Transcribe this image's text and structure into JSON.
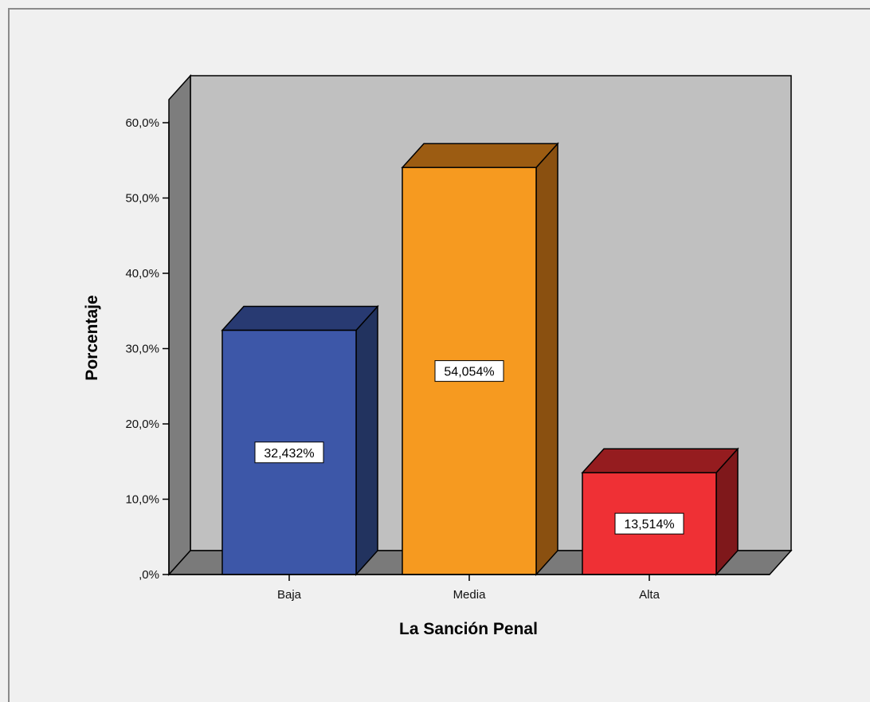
{
  "chart_data": {
    "type": "bar",
    "style": "3d",
    "title": "",
    "xlabel": "La Sanción Penal",
    "ylabel": "Porcentaje",
    "categories": [
      "Baja",
      "Media",
      "Alta"
    ],
    "values": [
      32.432,
      54.054,
      13.514
    ],
    "data_labels": [
      "32,432%",
      "54,054%",
      "13,514%"
    ],
    "ylim": [
      0,
      60
    ],
    "yticks": [
      0,
      10,
      20,
      30,
      40,
      50,
      60
    ],
    "ytick_labels": [
      ",0%",
      "10,0%",
      "20,0%",
      "30,0%",
      "40,0%",
      "50,0%",
      "60,0%"
    ],
    "colors": {
      "bars": [
        "#3d57a8",
        "#f69a20",
        "#ef3035"
      ],
      "bar_tops": [
        "#283a72",
        "#9c5c12",
        "#951c1f"
      ],
      "bar_sides": [
        "#22335f",
        "#8a5010",
        "#7f181b"
      ],
      "wall": "#c0c0c0",
      "floor": "#7a7a7a",
      "left_wall": "#7d7d7d",
      "background": "#f0f0f0"
    },
    "grid": false,
    "legend": "none"
  }
}
